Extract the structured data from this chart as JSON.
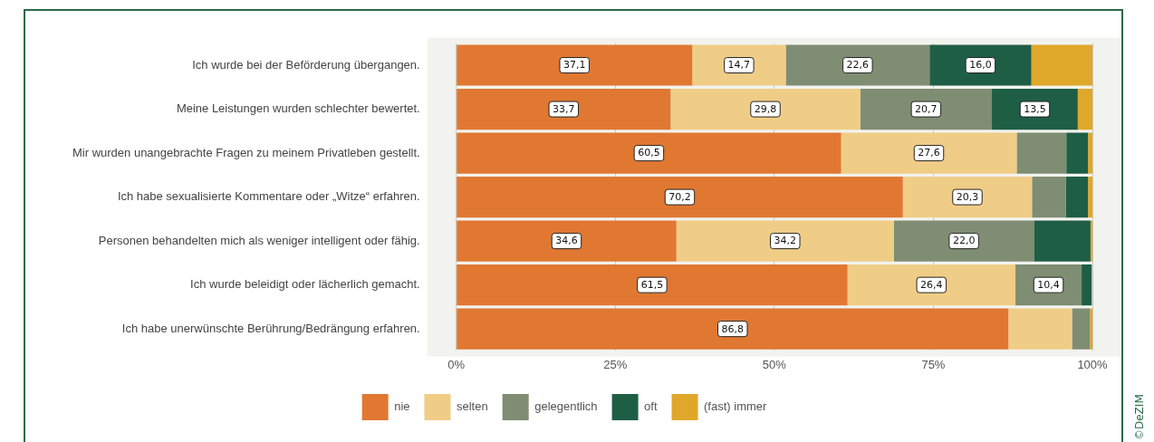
{
  "chart_data": {
    "type": "bar",
    "orientation": "horizontal",
    "stacked": true,
    "categories": [
      "Ich wurde bei der Beförderung übergangen.",
      "Meine Leistungen wurden schlechter bewertet.",
      "Mir wurden unangebrachte Fragen zu meinem Privatleben gestellt.",
      "Ich habe sexualisierte Kommentare oder „Witze“ erfahren.",
      "Personen behandelten mich als weniger intelligent oder fähig.",
      "Ich wurde beleidigt oder lächerlich gemacht.",
      "Ich habe unerwünschte Berührung/Bedrängung erfahren."
    ],
    "series": [
      {
        "name": "nie",
        "color": "#e07832",
        "values": [
          37.1,
          33.7,
          60.5,
          70.2,
          34.6,
          61.5,
          86.8
        ],
        "value_labels": [
          "37,1",
          "33,7",
          "60,5",
          "70,2",
          "34,6",
          "61,5",
          "86,8"
        ]
      },
      {
        "name": "selten",
        "color": "#f0cd86",
        "values": [
          14.7,
          29.8,
          27.6,
          20.3,
          34.2,
          26.4,
          10.0
        ],
        "value_labels": [
          "14,7",
          "29,8",
          "27,6",
          "20,3",
          "34,2",
          "26,4",
          null
        ]
      },
      {
        "name": "gelegentlich",
        "color": "#7f8d72",
        "values": [
          22.6,
          20.7,
          7.8,
          5.3,
          22.0,
          10.4,
          2.8
        ],
        "value_labels": [
          "22,6",
          "20,7",
          null,
          null,
          "22,0",
          "10,4",
          null
        ]
      },
      {
        "name": "oft",
        "color": "#1e5e45",
        "values": [
          16.0,
          13.5,
          3.4,
          3.5,
          8.9,
          1.6,
          null
        ],
        "value_labels": [
          "16,0",
          "13,5",
          null,
          null,
          null,
          null,
          null
        ]
      },
      {
        "name": "(fast) immer",
        "color": "#e0a82a",
        "values": [
          9.6,
          2.3,
          0.7,
          0.7,
          0.3,
          null,
          0.4
        ],
        "value_labels": [
          null,
          null,
          null,
          null,
          null,
          null,
          null
        ]
      }
    ],
    "xlim": [
      0,
      100
    ],
    "xticks": [
      {
        "value": 0,
        "label": "0%"
      },
      {
        "value": 25,
        "label": "25%"
      },
      {
        "value": 50,
        "label": "50%"
      },
      {
        "value": 75,
        "label": "75%"
      },
      {
        "value": 100,
        "label": "100%"
      }
    ],
    "grid": "x",
    "legend": "bottom",
    "annotations": [
      "©DeZIM"
    ]
  }
}
